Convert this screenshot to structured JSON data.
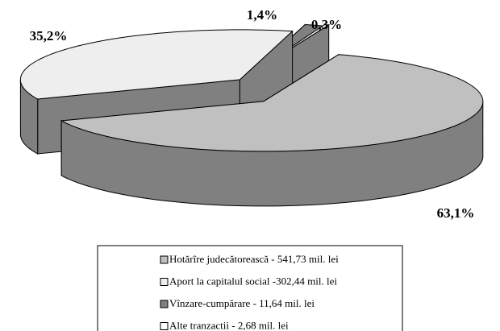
{
  "chart_data": {
    "type": "pie3d",
    "categories": [
      "Hotărîre judecătorească - 541,73 mil. lei",
      "Aport la capitalul social -302,44 mil. lei",
      "Vînzare-cumpărare - 11,64 mil. lei",
      "Alte tranzactii - 2,68 mil. lei"
    ],
    "values": [
      63.1,
      35.2,
      1.4,
      0.3
    ],
    "value_labels": [
      "63,1%",
      "35,2%",
      "1,4%",
      "0,3%"
    ],
    "colors": [
      "#c0c0c0",
      "#eeeeee",
      "#808080",
      "#ffffff"
    ]
  }
}
